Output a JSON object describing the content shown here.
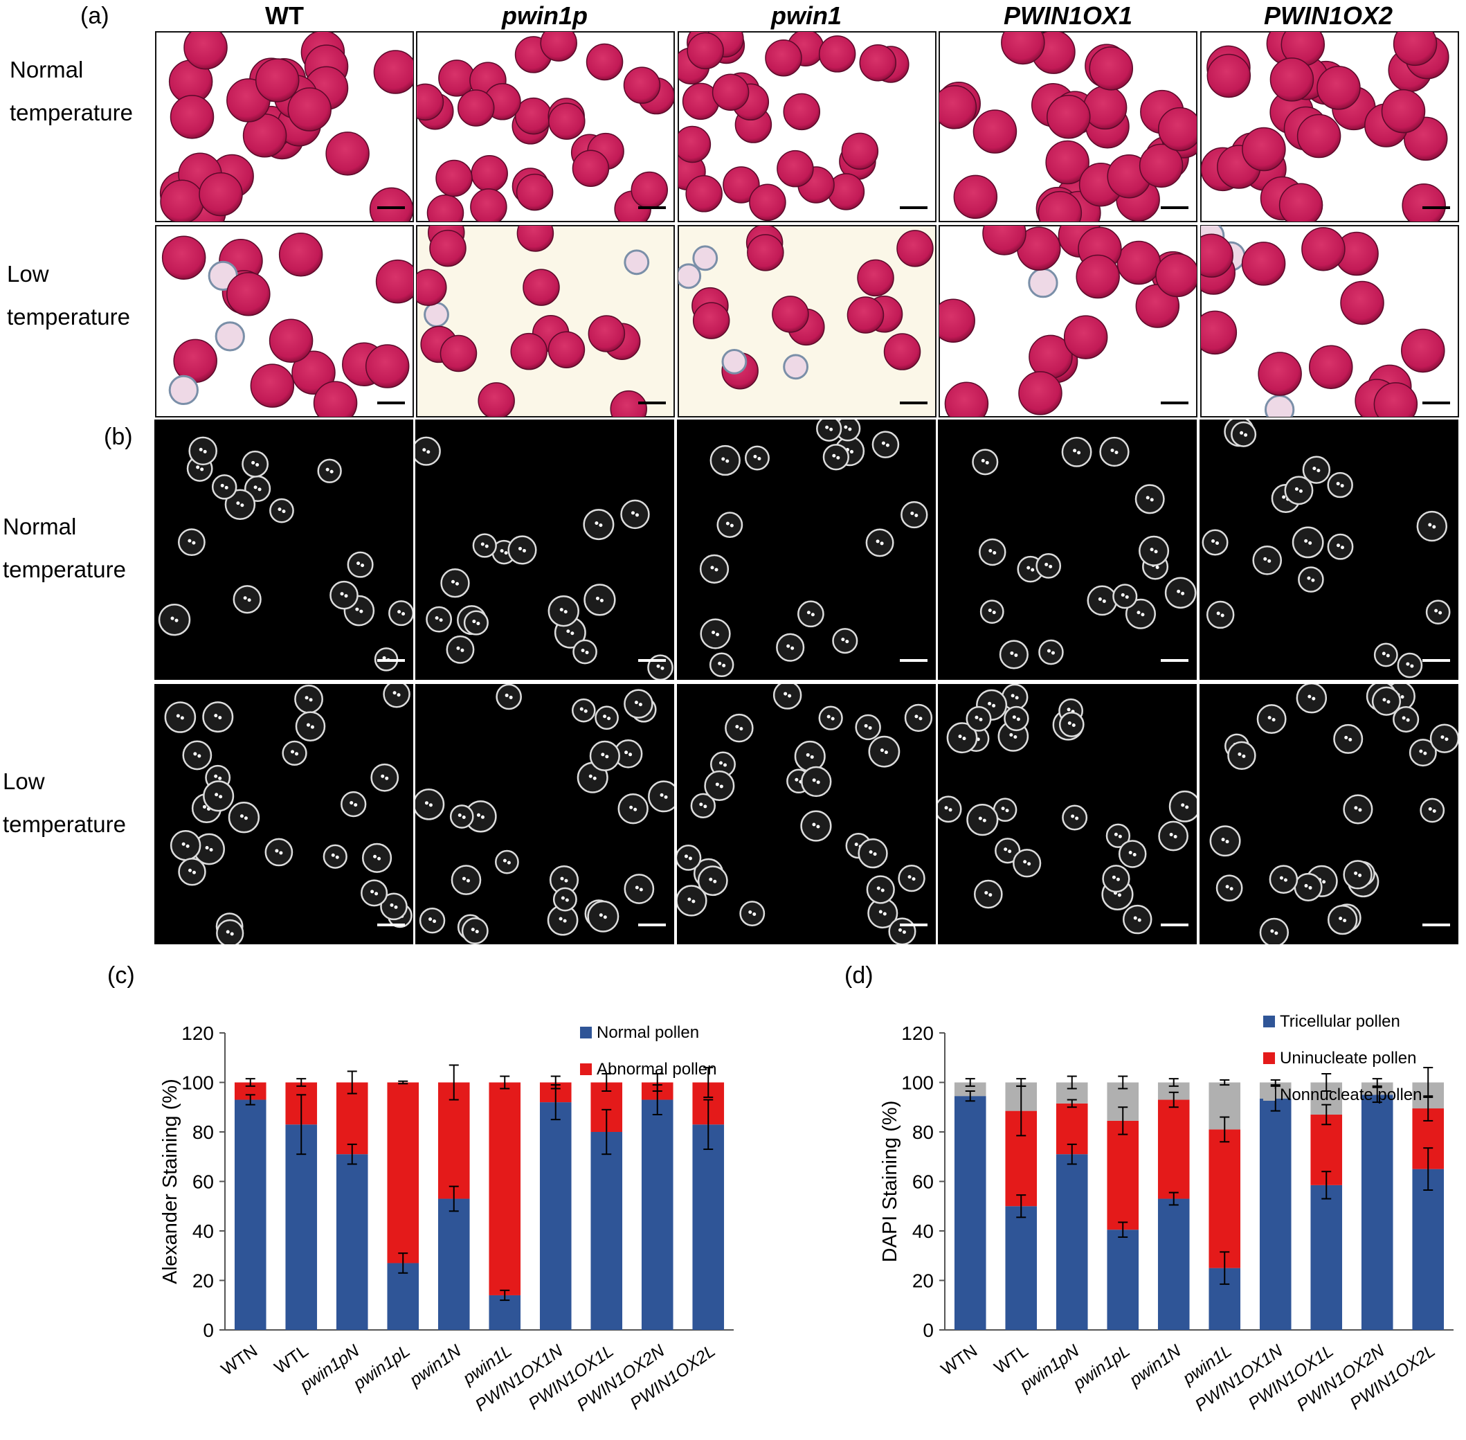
{
  "figure": {
    "panel_labels": {
      "a": "(a)",
      "b": "(b)",
      "c": "(c)",
      "d": "(d)"
    },
    "columns": [
      {
        "label": "WT",
        "italic": false
      },
      {
        "label": "pwin1p",
        "italic": true
      },
      {
        "label": "pwin1",
        "italic": true
      },
      {
        "label": "PWIN1OX1",
        "italic": true
      },
      {
        "label": "PWIN1OX2",
        "italic": true
      }
    ],
    "rows": {
      "a_normal": [
        "Normal",
        "temperature"
      ],
      "a_low": [
        "Low",
        "temperature"
      ],
      "b_normal": [
        "Normal",
        "temperature"
      ],
      "b_low": [
        "Low",
        "temperature"
      ]
    },
    "colors": {
      "pollen_stain": "#c21a56",
      "pollen_dark": "#8e0f3c",
      "normal_bar": "#2f5597",
      "abnormal_bar": "#e41a1a",
      "nonnucleate_bar": "#b0b0b0"
    }
  },
  "chart_data": [
    {
      "type": "bar",
      "stacked": true,
      "panel": "(c)",
      "ylabel": "Alexander Staining (%)",
      "ylim": [
        0,
        120
      ],
      "yticks": [
        0,
        20,
        40,
        60,
        80,
        100,
        120
      ],
      "categories": [
        "WTN",
        "WTL",
        "pwin1pN",
        "pwin1pL",
        "pwin1N",
        "pwin1L",
        "PWIN1OX1N",
        "PWIN1OX1L",
        "PWIN1OX2N",
        "PWIN1OX2L"
      ],
      "italic_categories": [
        false,
        false,
        true,
        true,
        true,
        true,
        true,
        true,
        true,
        true
      ],
      "series": [
        {
          "name": "Normal pollen",
          "color": "#2f5597",
          "values": [
            93,
            83,
            71,
            27,
            53,
            14,
            92,
            80,
            93,
            83
          ],
          "errors": [
            2,
            12,
            4,
            4,
            5,
            2,
            7,
            9,
            6,
            10
          ]
        },
        {
          "name": "Abnormal pollen",
          "color": "#e41a1a",
          "values": [
            7,
            17,
            29,
            73,
            47,
            86,
            8,
            20,
            7,
            17
          ],
          "errors": [
            1.5,
            1.5,
            4.5,
            0.5,
            7,
            2.5,
            2.5,
            3.5,
            3.5,
            6
          ]
        }
      ],
      "legend_position": "top-right",
      "grid": false
    },
    {
      "type": "bar",
      "stacked": true,
      "panel": "(d)",
      "ylabel": "DAPI Staining (%)",
      "ylim": [
        0,
        120
      ],
      "yticks": [
        0,
        20,
        40,
        60,
        80,
        100,
        120
      ],
      "categories": [
        "WTN",
        "WTL",
        "pwin1pN",
        "pwin1pL",
        "pwin1N",
        "pwin1L",
        "PWIN1OX1N",
        "PWIN1OX1L",
        "PWIN1OX2N",
        "PWIN1OX2L"
      ],
      "italic_categories": [
        false,
        false,
        true,
        true,
        true,
        true,
        true,
        true,
        true,
        true
      ],
      "series": [
        {
          "name": "Tricellular pollen",
          "color": "#2f5597",
          "values": [
            94.5,
            50,
            71,
            40.5,
            53,
            25,
            93.5,
            58.5,
            95,
            65
          ],
          "errors": [
            2,
            4.5,
            4,
            3,
            2.5,
            6.5,
            5,
            5.5,
            3,
            8.5
          ]
        },
        {
          "name": "Uninucleate pollen",
          "color": "#e41a1a",
          "values": [
            0,
            38.5,
            20.5,
            44,
            40,
            56,
            0,
            28.5,
            0,
            24.5
          ],
          "errors": [
            0,
            10,
            1.5,
            5.5,
            3,
            5,
            0,
            4,
            0,
            5
          ]
        },
        {
          "name": "Nonnucleate pollen",
          "color": "#b0b0b0",
          "values": [
            5.5,
            11.5,
            8.5,
            15.5,
            7,
            19,
            6.5,
            13,
            5,
            10.5
          ],
          "errors": [
            1.5,
            1.5,
            2.5,
            2.5,
            1.5,
            1,
            1,
            3.5,
            1.5,
            6
          ]
        }
      ],
      "legend_position": "top-right",
      "grid": false
    }
  ]
}
